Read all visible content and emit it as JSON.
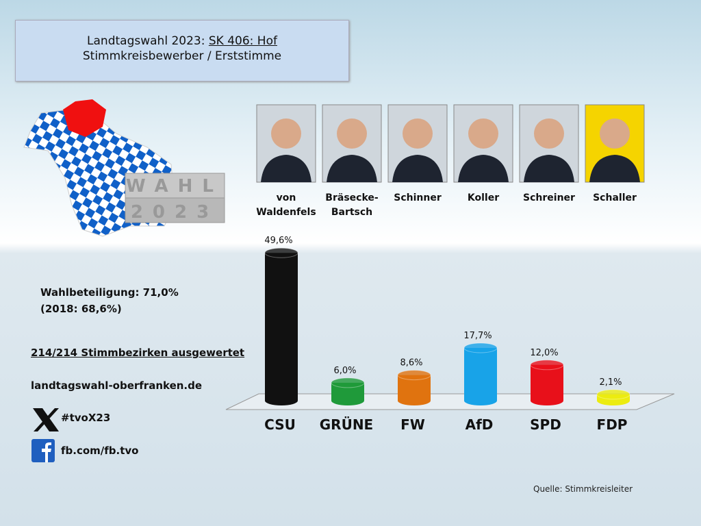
{
  "header": {
    "line1": "Landtagswahl 2023:",
    "district": "SK 406: Hof",
    "line2": "Stimmkreisbewerber / Erststimme"
  },
  "logo": {
    "top": "WAHL",
    "bottom": "2023"
  },
  "candidates": [
    "von Waldenfels",
    "Bräsecke-Bartsch",
    "Schinner",
    "Koller",
    "Schreiner",
    "Schaller"
  ],
  "info": {
    "turnout": "Wahlbeteiligung: 71,0%",
    "turnout_2018": "(2018: 68,6%)",
    "districts": "214/214 Stimmbezirken ausgewertet",
    "website": "landtagswahl-oberfranken.de",
    "hashtag": "#tvoX23",
    "facebook": "fb.com/fb.tvo"
  },
  "source": "Quelle: Stimmkreisleiter",
  "chart_data": {
    "type": "bar",
    "categories": [
      "CSU",
      "GRÜNE",
      "FW",
      "AfD",
      "SPD",
      "FDP"
    ],
    "values": [
      49.6,
      6.0,
      8.6,
      17.7,
      12.0,
      2.1
    ],
    "value_labels": [
      "49,6%",
      "6,0%",
      "8,6%",
      "17,7%",
      "12,0%",
      "2,1%"
    ],
    "colors": [
      "#111111",
      "#1f9a3a",
      "#e0730f",
      "#18a3e8",
      "#e8101a",
      "#ecec10"
    ]
  }
}
